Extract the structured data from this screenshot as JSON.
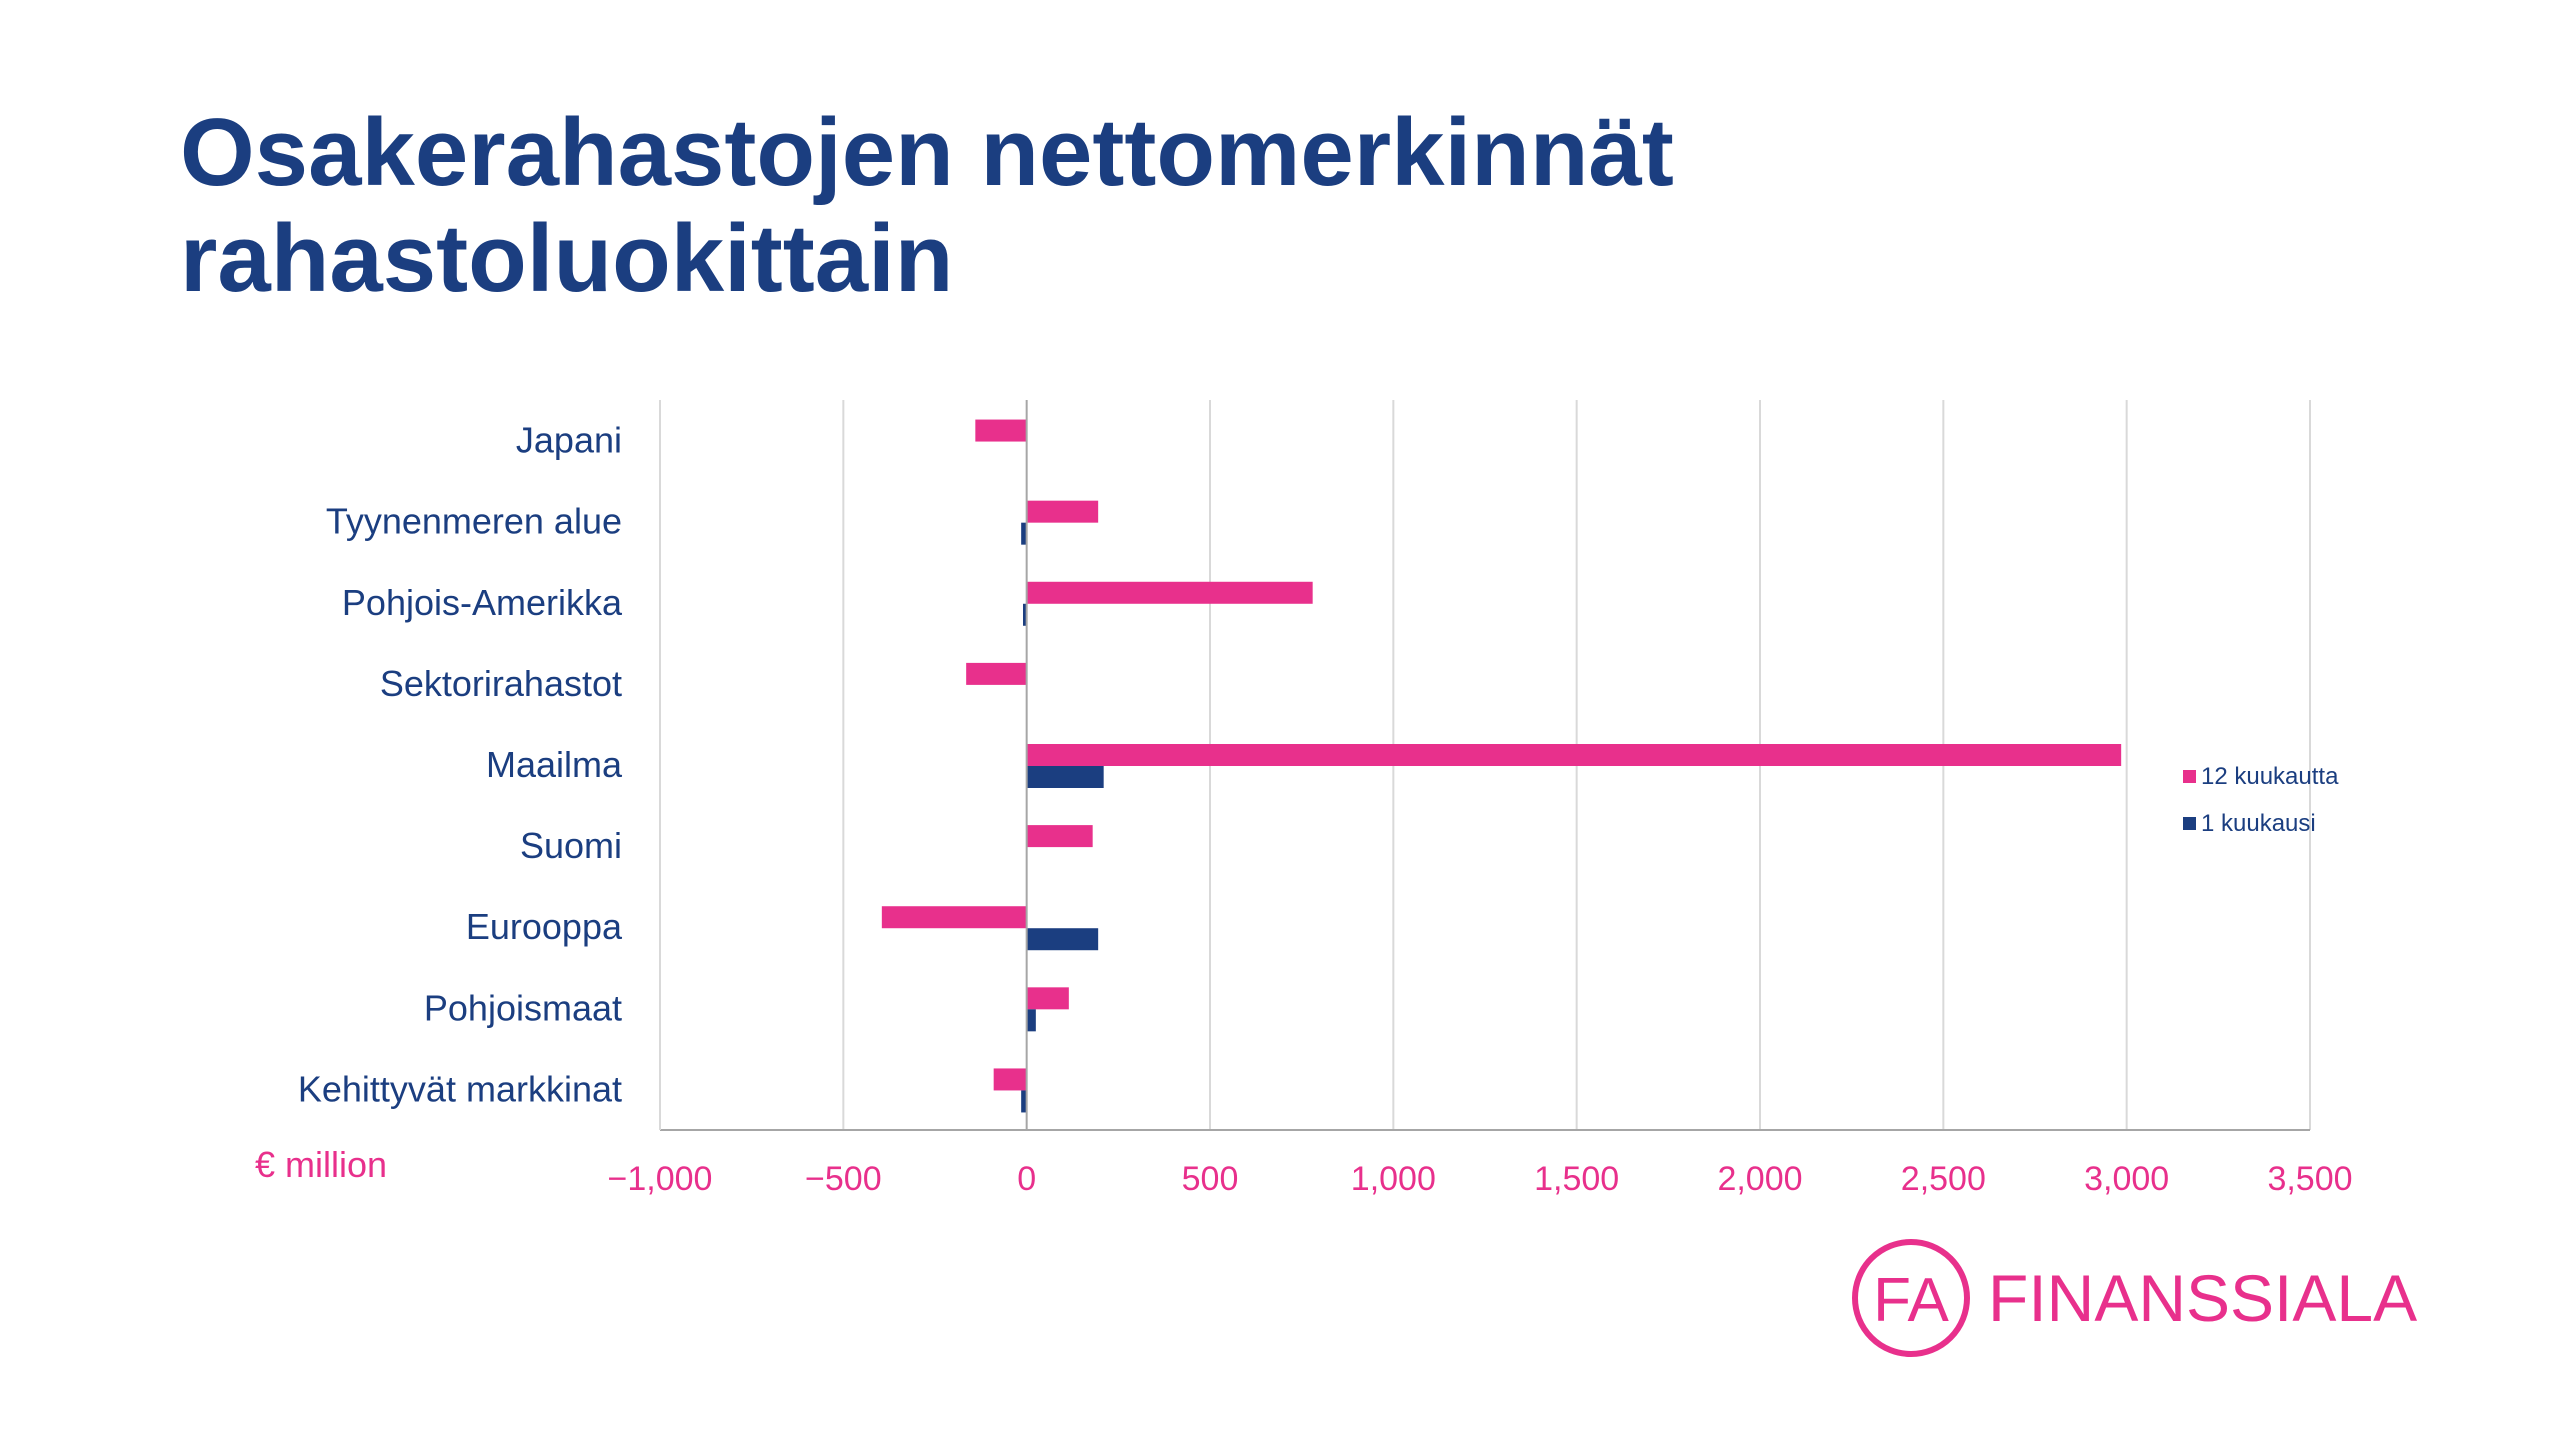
{
  "title": {
    "line1": "Osakerahastojen nettomerkinnät",
    "line2": "rahastoluokittain"
  },
  "chart_data": {
    "type": "bar",
    "orientation": "horizontal",
    "categories": [
      "Japani",
      "Tyynenmeren alue",
      "Pohjois-Amerikka",
      "Sektorirahastot",
      "Maailma",
      "Suomi",
      "Eurooppa",
      "Pohjoismaat",
      "Kehittyvät markkinat"
    ],
    "series": [
      {
        "name": "12 kuukautta",
        "color": "#e8308c",
        "values": [
          -140,
          195,
          780,
          -165,
          2985,
          180,
          -395,
          115,
          -90
        ]
      },
      {
        "name": "1 kuukausi",
        "color": "#1b3e80",
        "values": [
          0,
          -15,
          -10,
          0,
          210,
          0,
          195,
          25,
          -15
        ]
      }
    ],
    "xlim": [
      -1000,
      3500
    ],
    "xticks": [
      -1000,
      -500,
      0,
      500,
      1000,
      1500,
      2000,
      2500,
      3000,
      3500
    ],
    "xtick_labels": [
      "−1,000",
      "−500",
      "0",
      "500",
      "1,000",
      "1,500",
      "2,000",
      "2,500",
      "3,000",
      "3,500"
    ],
    "unit_label": "€ million",
    "grid": true,
    "legend_position": "right"
  },
  "logo": {
    "mark": "FA",
    "text": "FINANSSIALA"
  },
  "colors": {
    "navy": "#1b3e80",
    "pink": "#e8308c",
    "grid": "#d9d9d9",
    "axis": "#a6a6a6"
  }
}
